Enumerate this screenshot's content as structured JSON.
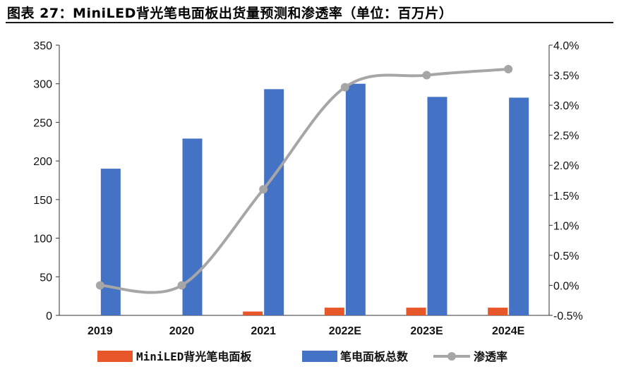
{
  "title": "图表 27：MiniLED背光笔电面板出货量预测和渗透率（单位：百万片）",
  "chart_data": {
    "type": "bar",
    "categories": [
      "2019",
      "2020",
      "2021",
      "2022E",
      "2023E",
      "2024E"
    ],
    "series": [
      {
        "name": "MiniLED背光笔电面板",
        "type": "bar",
        "axis": "left",
        "color": "#e8572a",
        "values": [
          0,
          0,
          5,
          10,
          10,
          10
        ]
      },
      {
        "name": "笔电面板总数",
        "type": "bar",
        "axis": "left",
        "color": "#4472c4",
        "values": [
          190,
          229,
          293,
          300,
          283,
          282
        ]
      },
      {
        "name": "渗透率",
        "type": "line",
        "axis": "right",
        "color": "#a6a6a6",
        "values": [
          0.0,
          0.0,
          1.6,
          3.3,
          3.5,
          3.6
        ]
      }
    ],
    "left_axis": {
      "ylim": [
        0,
        350
      ],
      "ticks": [
        "0",
        "50",
        "100",
        "150",
        "200",
        "250",
        "300",
        "350"
      ]
    },
    "right_axis": {
      "ylim": [
        -0.5,
        4.0
      ],
      "ticks": [
        "-0.5%",
        "0.0%",
        "0.5%",
        "1.0%",
        "1.5%",
        "2.0%",
        "2.5%",
        "3.0%",
        "3.5%",
        "4.0%"
      ]
    },
    "grid": false,
    "legend_position": "bottom"
  }
}
